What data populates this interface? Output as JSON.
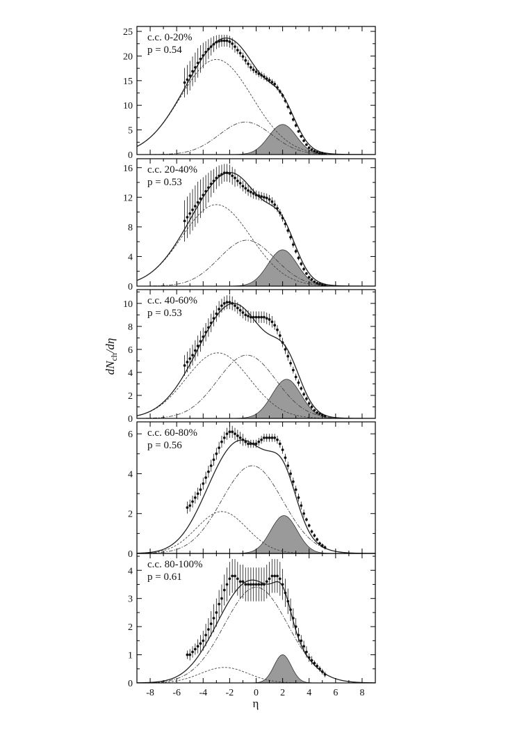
{
  "chart_data": {
    "type": "line",
    "xlabel": "η",
    "ylabel": "dN",
    "ylabel_sub": "ch",
    "ylabel_tail": "/dη",
    "xlim": [
      -9,
      9
    ],
    "x_ticks": [
      "-8",
      "-6",
      "-4",
      "-2",
      "0",
      "2",
      "4",
      "6",
      "8"
    ],
    "x_tick_values": [
      -8,
      -6,
      -4,
      -2,
      0,
      2,
      4,
      6,
      8
    ],
    "colors": {
      "shaded": "#9a9a9a",
      "line": "#222222",
      "axis": "#000000"
    },
    "panels": [
      {
        "label": "c.c. 0-20%",
        "p_text": "p = 0.54",
        "ylim": [
          0,
          26
        ],
        "y_ticks": [
          "0",
          "5",
          "10",
          "15",
          "20",
          "25"
        ],
        "y_tick_values": [
          0,
          5,
          10,
          15,
          20,
          25
        ],
        "components": [
          {
            "type": "proj",
            "amp": 19.3,
            "mu": -3.0,
            "sigma": 2.7
          },
          {
            "type": "fire",
            "amp": 6.6,
            "mu": -0.8,
            "sigma": 2.0
          },
          {
            "type": "targ",
            "amp": 6.1,
            "mu": 2.0,
            "sigma": 1.05
          }
        ],
        "data": {
          "x": [
            -5.4,
            -5.2,
            -5.0,
            -4.8,
            -4.6,
            -4.4,
            -4.2,
            -4.0,
            -3.8,
            -3.6,
            -3.4,
            -3.2,
            -3.0,
            -2.8,
            -2.6,
            -2.4,
            -2.2,
            -2.0,
            -1.8,
            -1.6,
            -1.4,
            -1.2,
            -1.0,
            -0.8,
            -0.6,
            -0.4,
            -0.2,
            0.0,
            0.2,
            0.4,
            0.6,
            0.8,
            1.0,
            1.2,
            1.4,
            1.6,
            1.8,
            2.0,
            2.2,
            2.4,
            2.6,
            2.8,
            3.0,
            3.2,
            3.4,
            3.6,
            3.8,
            4.0,
            4.2,
            4.4,
            4.6,
            4.8,
            5.0,
            5.2
          ],
          "y": [
            14.6,
            15.2,
            16.0,
            16.9,
            17.7,
            18.6,
            19.4,
            20.1,
            20.8,
            21.4,
            21.9,
            22.4,
            22.8,
            23.0,
            23.1,
            23.1,
            23.1,
            22.9,
            22.5,
            21.9,
            21.2,
            20.6,
            19.9,
            19.1,
            18.4,
            17.7,
            17.2,
            16.8,
            16.4,
            16.1,
            15.8,
            15.4,
            15.1,
            14.7,
            14.3,
            13.6,
            12.8,
            12.0,
            10.9,
            9.7,
            8.4,
            7.1,
            5.9,
            4.7,
            3.7,
            2.8,
            2.0,
            1.4,
            1.0,
            0.7,
            0.5,
            0.3,
            0.2,
            0.1
          ],
          "err": [
            3.0,
            3.0,
            3.0,
            3.0,
            3.0,
            3.0,
            2.8,
            2.6,
            2.2,
            2.0,
            1.8,
            1.6,
            1.4,
            1.3,
            1.2,
            1.2,
            1.2,
            1.2,
            1.2,
            1.2,
            0.8,
            0.8,
            0.8,
            0.8,
            0.8,
            0.8,
            0.7,
            0.7,
            0.7,
            0.7,
            0.7,
            0.6,
            0.6,
            0.6,
            0.6,
            0.6,
            0.5,
            0.5,
            0.5,
            0.5,
            0.4,
            0.4,
            0.4,
            0.3,
            0.3,
            0.3,
            0.3,
            0.2,
            0.2,
            0.2,
            0.2,
            0.1,
            0.1,
            0.1
          ]
        }
      },
      {
        "label": "c.c. 20-40%",
        "p_text": "p = 0.53",
        "ylim": [
          0,
          17.2
        ],
        "y_ticks": [
          "0",
          "4",
          "8",
          "12",
          "16"
        ],
        "y_tick_values": [
          0,
          4,
          8,
          12,
          16
        ],
        "components": [
          {
            "type": "proj",
            "amp": 11.0,
            "mu": -3.0,
            "sigma": 2.6
          },
          {
            "type": "fire",
            "amp": 6.2,
            "mu": -0.7,
            "sigma": 2.1
          },
          {
            "type": "targ",
            "amp": 4.9,
            "mu": 2.0,
            "sigma": 1.1
          }
        ],
        "data": {
          "x": [
            -5.4,
            -5.2,
            -5.0,
            -4.8,
            -4.6,
            -4.4,
            -4.2,
            -4.0,
            -3.8,
            -3.6,
            -3.4,
            -3.2,
            -3.0,
            -2.8,
            -2.6,
            -2.4,
            -2.2,
            -2.0,
            -1.8,
            -1.6,
            -1.4,
            -1.2,
            -1.0,
            -0.8,
            -0.6,
            -0.4,
            -0.2,
            0.0,
            0.2,
            0.4,
            0.6,
            0.8,
            1.0,
            1.2,
            1.4,
            1.6,
            1.8,
            2.0,
            2.2,
            2.4,
            2.6,
            2.8,
            3.0,
            3.2,
            3.4,
            3.6,
            3.8,
            4.0,
            4.2,
            4.4,
            4.6,
            4.8,
            5.0,
            5.2
          ],
          "y": [
            8.8,
            9.3,
            9.8,
            10.3,
            10.8,
            11.3,
            11.8,
            12.3,
            12.8,
            13.3,
            13.8,
            14.2,
            14.6,
            14.9,
            15.1,
            15.3,
            15.3,
            15.2,
            14.9,
            14.6,
            14.2,
            13.9,
            13.5,
            13.2,
            12.9,
            12.7,
            12.5,
            12.3,
            12.2,
            12.1,
            12.0,
            11.9,
            11.7,
            11.4,
            11.0,
            10.5,
            9.9,
            9.2,
            8.4,
            7.5,
            6.6,
            5.6,
            4.7,
            3.8,
            3.0,
            2.3,
            1.7,
            1.2,
            0.9,
            0.6,
            0.4,
            0.3,
            0.2,
            0.1
          ],
          "err": [
            2.8,
            2.8,
            2.8,
            2.8,
            2.8,
            2.8,
            2.6,
            2.4,
            2.2,
            2.0,
            1.8,
            1.6,
            1.5,
            1.4,
            1.3,
            1.2,
            1.2,
            1.2,
            1.2,
            1.2,
            0.7,
            0.7,
            0.7,
            0.7,
            0.7,
            0.7,
            0.7,
            0.6,
            0.6,
            0.6,
            0.6,
            0.6,
            0.6,
            0.6,
            0.6,
            0.5,
            0.5,
            0.5,
            0.5,
            0.4,
            0.4,
            0.4,
            0.3,
            0.3,
            0.3,
            0.3,
            0.2,
            0.2,
            0.2,
            0.1,
            0.1,
            0.1,
            0.1,
            0.1
          ]
        }
      },
      {
        "label": "c.c. 40-60%",
        "p_text": "p = 0.53",
        "ylim": [
          0,
          11.2
        ],
        "y_ticks": [
          "0",
          "2",
          "4",
          "6",
          "8",
          "10"
        ],
        "y_tick_values": [
          0,
          2,
          4,
          6,
          8,
          10
        ],
        "components": [
          {
            "type": "proj",
            "amp": 5.7,
            "mu": -2.9,
            "sigma": 2.4
          },
          {
            "type": "fire",
            "amp": 5.5,
            "mu": -0.7,
            "sigma": 2.2
          },
          {
            "type": "targ",
            "amp": 3.4,
            "mu": 2.3,
            "sigma": 1.1
          }
        ],
        "data": {
          "x": [
            -5.4,
            -5.2,
            -5.0,
            -4.8,
            -4.6,
            -4.4,
            -4.2,
            -4.0,
            -3.8,
            -3.6,
            -3.4,
            -3.2,
            -3.0,
            -2.8,
            -2.6,
            -2.4,
            -2.2,
            -2.0,
            -1.8,
            -1.6,
            -1.4,
            -1.2,
            -1.0,
            -0.8,
            -0.6,
            -0.4,
            -0.2,
            0.0,
            0.2,
            0.4,
            0.6,
            0.8,
            1.0,
            1.2,
            1.4,
            1.6,
            1.8,
            2.0,
            2.2,
            2.4,
            2.6,
            2.8,
            3.0,
            3.2,
            3.4,
            3.6,
            3.8,
            4.0,
            4.2,
            4.4,
            4.6,
            4.8,
            5.0,
            5.2
          ],
          "y": [
            4.6,
            4.9,
            5.2,
            5.5,
            5.9,
            6.3,
            6.7,
            7.1,
            7.5,
            7.9,
            8.3,
            8.7,
            9.1,
            9.5,
            9.8,
            10.0,
            10.1,
            10.1,
            10.0,
            9.8,
            9.6,
            9.4,
            9.2,
            9.0,
            8.9,
            8.8,
            8.8,
            8.8,
            8.8,
            8.8,
            8.8,
            8.7,
            8.6,
            8.4,
            8.1,
            7.7,
            7.2,
            6.6,
            6.0,
            5.4,
            4.8,
            4.2,
            3.6,
            3.1,
            2.6,
            2.1,
            1.7,
            1.3,
            1.0,
            0.7,
            0.5,
            0.4,
            0.3,
            0.2
          ],
          "err": [
            0.9,
            0.9,
            0.9,
            0.9,
            0.9,
            0.9,
            0.9,
            0.8,
            0.8,
            0.8,
            0.8,
            0.7,
            0.7,
            0.7,
            0.6,
            0.6,
            0.6,
            0.6,
            0.6,
            0.5,
            0.5,
            0.5,
            0.5,
            0.5,
            0.5,
            0.5,
            0.5,
            0.5,
            0.5,
            0.5,
            0.5,
            0.5,
            0.5,
            0.5,
            0.4,
            0.4,
            0.4,
            0.4,
            0.4,
            0.4,
            0.3,
            0.3,
            0.3,
            0.3,
            0.2,
            0.2,
            0.2,
            0.2,
            0.2,
            0.1,
            0.1,
            0.1,
            0.1,
            0.1
          ]
        }
      },
      {
        "label": "c.c. 60-80%",
        "p_text": "p = 0.56",
        "ylim": [
          0,
          6.6
        ],
        "y_ticks": [
          "0",
          "2",
          "4",
          "6"
        ],
        "y_tick_values": [
          0,
          2,
          4,
          6
        ],
        "components": [
          {
            "type": "proj",
            "amp": 2.1,
            "mu": -2.6,
            "sigma": 1.9
          },
          {
            "type": "fire",
            "amp": 4.4,
            "mu": -0.3,
            "sigma": 2.3
          },
          {
            "type": "targ",
            "amp": 1.9,
            "mu": 2.1,
            "sigma": 1.0
          }
        ],
        "data": {
          "x": [
            -5.2,
            -5.0,
            -4.8,
            -4.6,
            -4.4,
            -4.2,
            -4.0,
            -3.8,
            -3.6,
            -3.4,
            -3.2,
            -3.0,
            -2.8,
            -2.6,
            -2.4,
            -2.2,
            -2.0,
            -1.8,
            -1.6,
            -1.4,
            -1.2,
            -1.0,
            -0.8,
            -0.6,
            -0.4,
            -0.2,
            0.0,
            0.2,
            0.4,
            0.6,
            0.8,
            1.0,
            1.2,
            1.4,
            1.6,
            1.8,
            2.0,
            2.2,
            2.4,
            2.6,
            2.8,
            3.0,
            3.2,
            3.4,
            3.6,
            3.8,
            4.0,
            4.2,
            4.4,
            4.6,
            4.8,
            5.0,
            5.2
          ],
          "y": [
            2.3,
            2.4,
            2.6,
            2.8,
            3.0,
            3.2,
            3.5,
            3.8,
            4.1,
            4.4,
            4.7,
            5.0,
            5.3,
            5.6,
            5.8,
            6.0,
            6.1,
            6.1,
            6.0,
            5.9,
            5.8,
            5.7,
            5.6,
            5.5,
            5.5,
            5.5,
            5.5,
            5.6,
            5.7,
            5.8,
            5.8,
            5.8,
            5.8,
            5.8,
            5.7,
            5.5,
            5.2,
            4.8,
            4.4,
            4.0,
            3.6,
            3.2,
            2.8,
            2.4,
            2.0,
            1.7,
            1.4,
            1.1,
            0.9,
            0.7,
            0.5,
            0.4,
            0.3
          ],
          "err": [
            0.3,
            0.3,
            0.3,
            0.3,
            0.3,
            0.3,
            0.3,
            0.3,
            0.3,
            0.3,
            0.3,
            0.3,
            0.3,
            0.3,
            0.3,
            0.3,
            0.3,
            0.3,
            0.3,
            0.3,
            0.3,
            0.3,
            0.2,
            0.2,
            0.2,
            0.2,
            0.2,
            0.2,
            0.2,
            0.2,
            0.2,
            0.2,
            0.2,
            0.2,
            0.2,
            0.2,
            0.2,
            0.2,
            0.2,
            0.2,
            0.2,
            0.2,
            0.2,
            0.2,
            0.2,
            0.1,
            0.1,
            0.1,
            0.1,
            0.1,
            0.1,
            0.1,
            0.1
          ]
        }
      },
      {
        "label": "c.c. 80-100%",
        "p_text": "p = 0.61",
        "ylim": [
          0,
          4.6
        ],
        "y_ticks": [
          "0",
          "1",
          "2",
          "3",
          "4"
        ],
        "y_tick_values": [
          0,
          1,
          2,
          3,
          4
        ],
        "components": [
          {
            "type": "proj",
            "amp": 0.55,
            "mu": -2.4,
            "sigma": 1.8
          },
          {
            "type": "fire",
            "amp": 3.4,
            "mu": 0.0,
            "sigma": 2.4
          },
          {
            "type": "targ",
            "amp": 1.0,
            "mu": 2.0,
            "sigma": 0.65
          }
        ],
        "data": {
          "x": [
            -5.2,
            -5.0,
            -4.8,
            -4.6,
            -4.4,
            -4.2,
            -4.0,
            -3.8,
            -3.6,
            -3.4,
            -3.2,
            -3.0,
            -2.8,
            -2.6,
            -2.4,
            -2.2,
            -2.0,
            -1.8,
            -1.6,
            -1.4,
            -1.2,
            -1.0,
            -0.8,
            -0.6,
            -0.4,
            -0.2,
            0.0,
            0.2,
            0.4,
            0.6,
            0.8,
            1.0,
            1.2,
            1.4,
            1.6,
            1.8,
            2.0,
            2.2,
            2.4,
            2.6,
            2.8,
            3.0,
            3.2,
            3.4,
            3.6,
            3.8,
            4.0,
            4.2,
            4.4,
            4.6,
            4.8,
            5.0,
            5.2
          ],
          "y": [
            1.0,
            1.0,
            1.1,
            1.2,
            1.3,
            1.4,
            1.5,
            1.7,
            1.9,
            2.1,
            2.3,
            2.5,
            2.8,
            3.0,
            3.3,
            3.5,
            3.7,
            3.8,
            3.8,
            3.7,
            3.6,
            3.6,
            3.5,
            3.5,
            3.5,
            3.5,
            3.5,
            3.5,
            3.5,
            3.5,
            3.6,
            3.7,
            3.8,
            3.8,
            3.8,
            3.7,
            3.5,
            3.2,
            2.9,
            2.6,
            2.3,
            2.0,
            1.7,
            1.5,
            1.3,
            1.1,
            0.9,
            0.8,
            0.7,
            0.6,
            0.5,
            0.4,
            0.3
          ],
          "err": [
            0.15,
            0.2,
            0.2,
            0.2,
            0.25,
            0.3,
            0.35,
            0.4,
            0.4,
            0.45,
            0.5,
            0.5,
            0.5,
            0.5,
            0.55,
            0.6,
            0.6,
            0.6,
            0.6,
            0.6,
            0.6,
            0.6,
            0.6,
            0.6,
            0.6,
            0.6,
            0.6,
            0.6,
            0.6,
            0.6,
            0.6,
            0.6,
            0.6,
            0.6,
            0.6,
            0.6,
            0.55,
            0.5,
            0.45,
            0.4,
            0.35,
            0.3,
            0.25,
            0.2,
            0.2,
            0.2,
            0.15,
            0.15,
            0.1,
            0.1,
            0.1,
            0.1,
            0.1
          ]
        }
      }
    ]
  }
}
